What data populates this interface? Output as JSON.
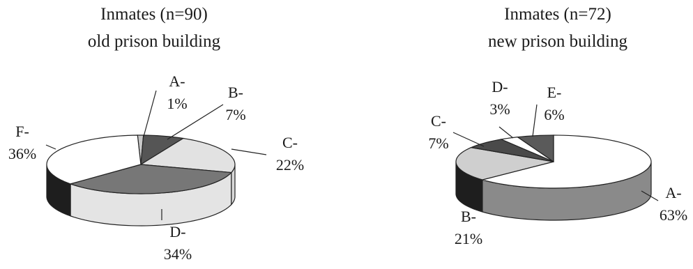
{
  "chart_data": [
    {
      "type": "pie",
      "title": "Inmates (n=90)",
      "subtitle": "old prison building",
      "slices": [
        {
          "name": "A-",
          "value": 1,
          "label": "1%",
          "color": "#c8c8c8"
        },
        {
          "name": "B-",
          "value": 7,
          "label": "7%",
          "color": "#555555"
        },
        {
          "name": "C-",
          "value": 22,
          "label": "22%",
          "color": "#e2e2e2"
        },
        {
          "name": "D-",
          "value": 34,
          "label": "34%",
          "color": "#777777"
        },
        {
          "name": "F-",
          "value": 36,
          "label": "36%",
          "color": "#ffffff"
        }
      ]
    },
    {
      "type": "pie",
      "title": "Inmates (n=72)",
      "subtitle": "new prison building",
      "slices": [
        {
          "name": "A-",
          "value": 63,
          "label": "63%",
          "color": "#ffffff"
        },
        {
          "name": "B-",
          "value": 21,
          "label": "21%",
          "color": "#cfcfcf"
        },
        {
          "name": "C-",
          "value": 7,
          "label": "7%",
          "color": "#4a4a4a"
        },
        {
          "name": "D-",
          "value": 3,
          "label": "3%",
          "color": "#ffffff"
        },
        {
          "name": "E-",
          "value": 6,
          "label": "6%",
          "color": "#5a5a5a"
        }
      ]
    }
  ]
}
